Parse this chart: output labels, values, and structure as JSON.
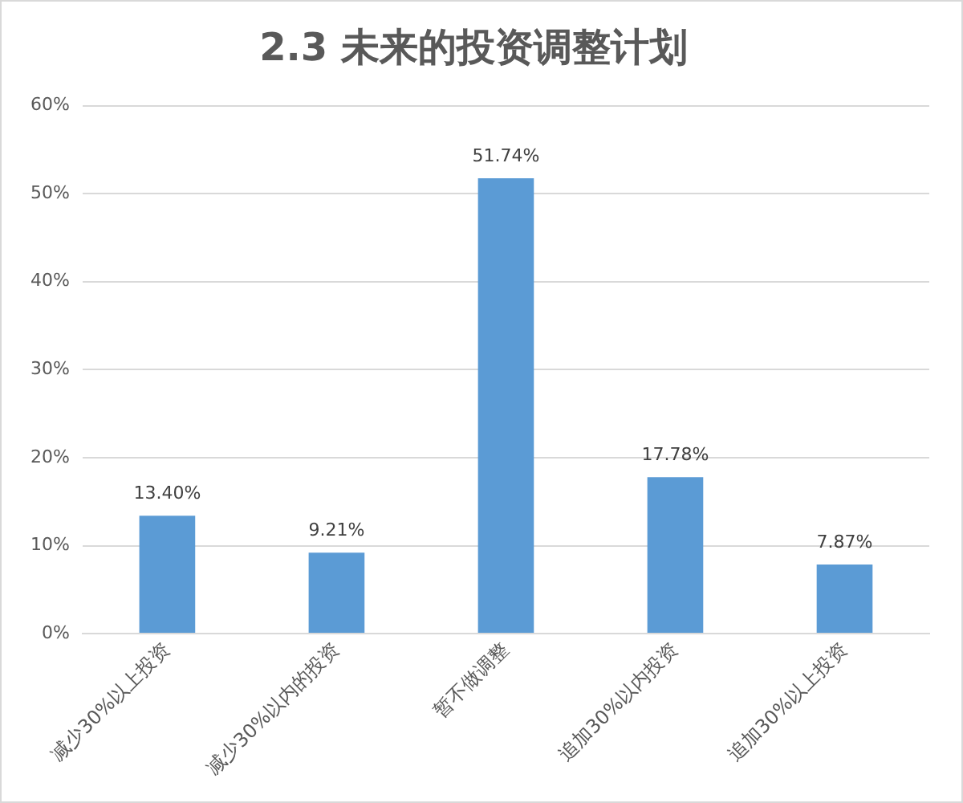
{
  "chart_data": {
    "type": "bar",
    "title": "2.3 未来的投资调整计划",
    "categories": [
      "减少30%以上投资",
      "减少30%以内的投资",
      "暂不做调整",
      "追加30%以内投资",
      "追加30%以上投资"
    ],
    "values": [
      13.4,
      9.21,
      51.74,
      17.78,
      7.87
    ],
    "value_labels": [
      "13.40%",
      "9.21%",
      "51.74%",
      "17.78%",
      "7.87%"
    ],
    "color": "#5b9bd5",
    "ylim": [
      0,
      60
    ],
    "yticks": [
      {
        "value": 0,
        "label": "0%"
      },
      {
        "value": 10,
        "label": "10%"
      },
      {
        "value": 20,
        "label": "20%"
      },
      {
        "value": 30,
        "label": "30%"
      },
      {
        "value": 40,
        "label": "40%"
      },
      {
        "value": 50,
        "label": "50%"
      },
      {
        "value": 60,
        "label": "60%"
      }
    ],
    "grid": "y",
    "legend": false
  }
}
